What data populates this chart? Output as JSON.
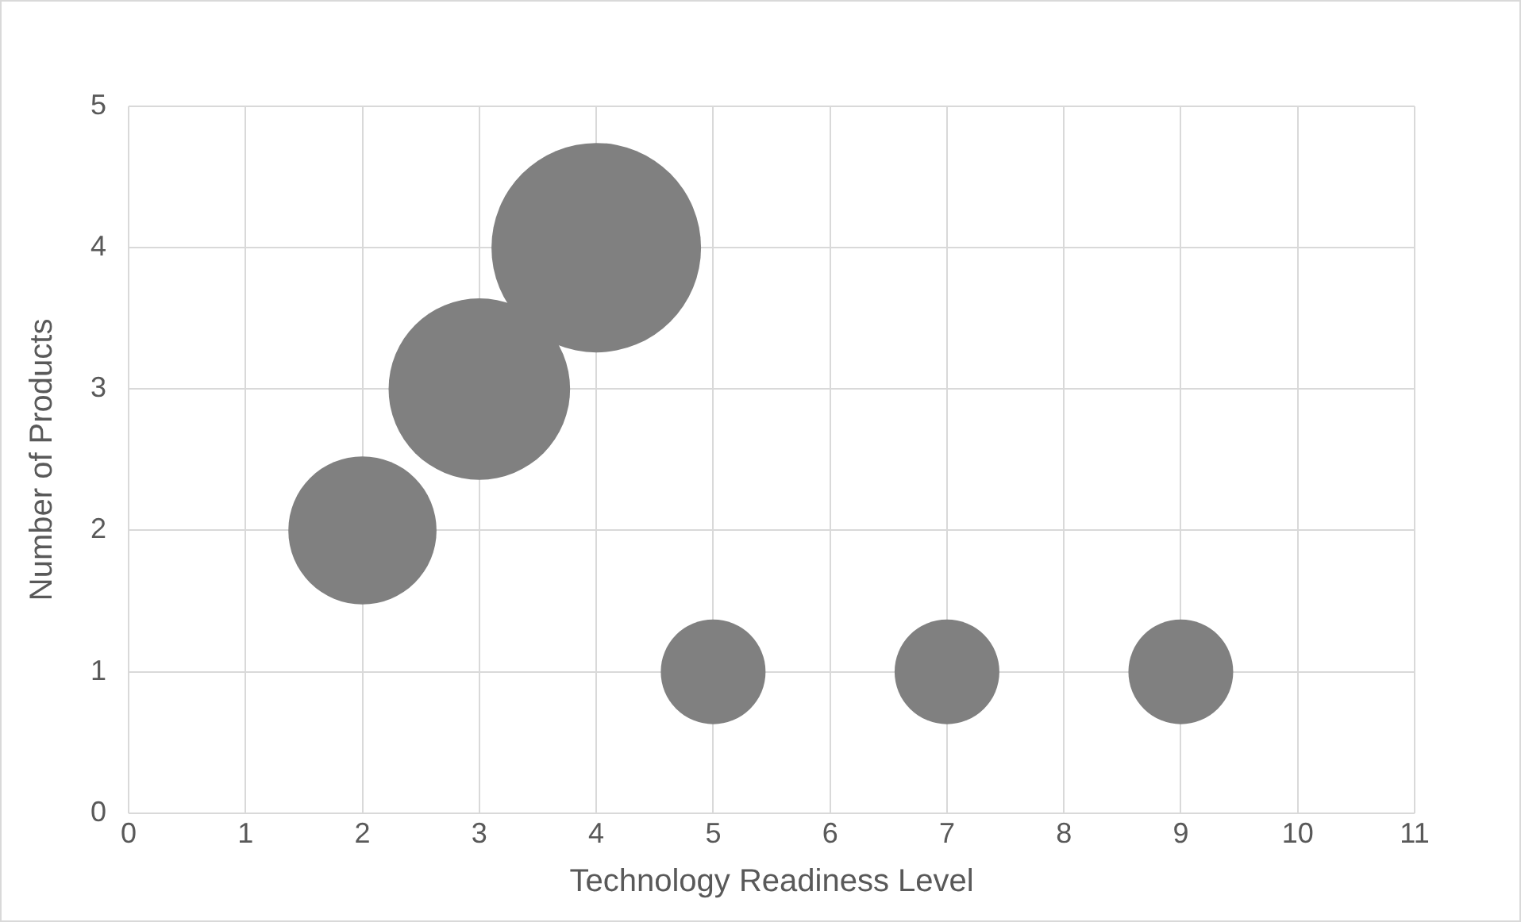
{
  "chart_data": {
    "type": "bubble",
    "xlabel": "Technology Readiness Level",
    "ylabel": "Number of Products",
    "x": [
      2,
      3,
      4,
      5,
      7,
      9
    ],
    "values": [
      2,
      3,
      4,
      1,
      1,
      1
    ],
    "sizes": [
      0.5,
      0.75,
      1,
      0.25,
      0.25,
      0.25
    ],
    "color": "#808080",
    "xlim": [
      0,
      11
    ],
    "xticks": [
      0,
      1,
      2,
      3,
      4,
      5,
      6,
      7,
      8,
      9,
      10,
      11
    ],
    "ylim": [
      0,
      5
    ],
    "yticks": [
      0,
      1,
      2,
      3,
      4,
      5
    ],
    "grid": true,
    "legend": false
  }
}
